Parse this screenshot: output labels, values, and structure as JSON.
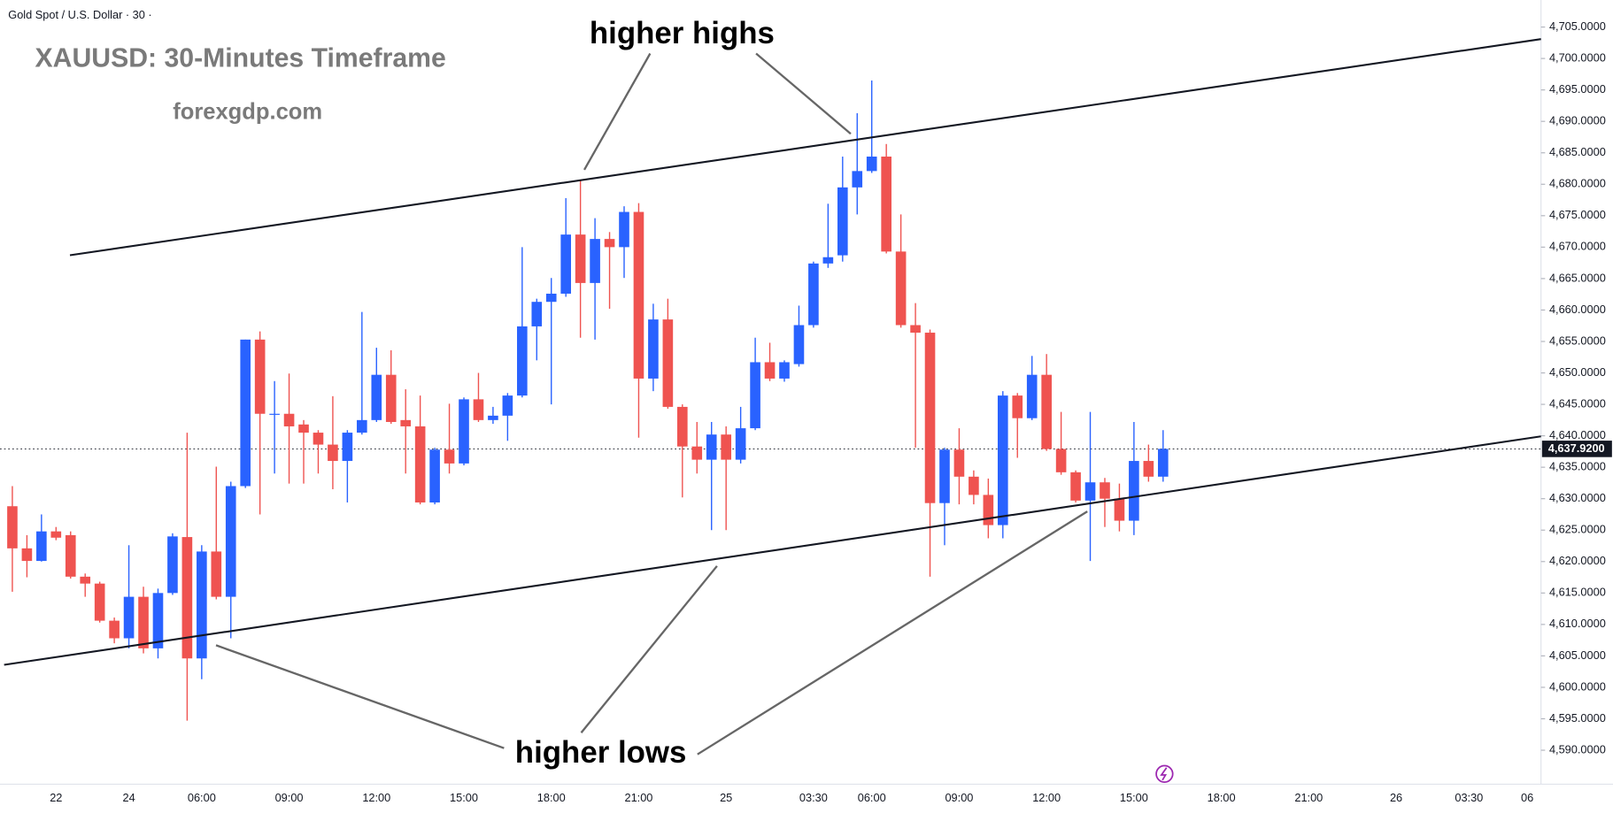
{
  "header": "Gold Spot / U.S. Dollar · 30 ·",
  "chart_data": {
    "type": "candlestick",
    "title": "XAUUSD: 30-Minutes Timeframe",
    "subtitle": "forexgdp.com",
    "annotations": [
      "higher highs",
      "higher lows"
    ],
    "up_color": "#2962ff",
    "down_color": "#ef5350",
    "categories": [
      null,
      null,
      null,
      "22",
      null,
      null,
      null,
      null,
      "24",
      null,
      null,
      null,
      null,
      "06:00",
      null,
      null,
      null,
      null,
      null,
      "09:00",
      null,
      null,
      null,
      null,
      null,
      "12:00",
      null,
      null,
      null,
      null,
      null,
      "15:00",
      null,
      null,
      null,
      null,
      null,
      "18:00",
      null,
      null,
      null,
      null,
      null,
      "21:00",
      null,
      null,
      null,
      null,
      null,
      "25",
      null,
      null,
      null,
      null,
      null,
      "03:30",
      null,
      null,
      null,
      "06:00",
      null,
      null,
      null,
      null,
      null,
      "09:00",
      null,
      null,
      null,
      null,
      null,
      "12:00",
      null,
      null,
      null,
      null,
      null,
      "15:00",
      null,
      null,
      null,
      null,
      null,
      "18:00",
      null,
      null,
      null,
      null,
      null,
      "21:00",
      null,
      null,
      null,
      null,
      null,
      "26",
      null,
      null,
      null,
      null,
      "03:30",
      null,
      null,
      null,
      "06"
    ],
    "open": [
      4628.8,
      4622.1,
      4620.1,
      4624.8,
      4624.2,
      4617.6,
      4616.5,
      4610.6,
      4607.8,
      4614.4,
      4606.2,
      4615,
      4623.9,
      4604.6,
      4621.6,
      4614.4,
      4632,
      4655.3,
      4643.5,
      4643.5,
      4641.8,
      4640.5,
      4638.6,
      4636,
      4640.5,
      4642.5,
      4649.7,
      4642.5,
      4641.5,
      4629.4,
      4637.8,
      4635.6,
      4645.8,
      4642.5,
      4643.2,
      4646.4,
      4657.4,
      4661.3,
      4662.6,
      4672,
      4664.3,
      4671.3,
      4670,
      4675.6,
      4649.1,
      4658.5,
      4644.6,
      4638.3,
      4636.2,
      4640.2,
      4636.2,
      4641.2,
      4651.7,
      4649.1,
      4651.4,
      4657.6,
      4667.4,
      4668.7,
      4679.5,
      4682.1,
      4684.4,
      4669.3,
      4657.6,
      4656.4,
      4629.3,
      4637.8,
      4633.5,
      4630.6,
      4625.8,
      4646.4,
      4642.8,
      4649.7,
      4637.9,
      4634.2,
      4629.7,
      4632.6,
      4630,
      4626.5,
      4636,
      4633.5,
      null,
      null,
      null,
      null,
      null,
      null,
      null,
      null,
      null,
      null,
      null,
      null,
      null,
      null,
      null,
      null,
      null,
      null,
      null,
      null,
      null,
      null,
      null,
      null,
      null
    ],
    "high": [
      4632,
      4624.2,
      4627.5,
      4625.5,
      4624.8,
      4618.1,
      4616.8,
      4611.1,
      4622.6,
      4616,
      4615.7,
      4624.5,
      4640.5,
      4622.6,
      4635.1,
      4632.7,
      4655.3,
      4656.6,
      4648.7,
      4649.9,
      4642.5,
      4640.9,
      4646.3,
      4640.9,
      4659.7,
      4654,
      4653.6,
      4647.4,
      4646.4,
      4638.1,
      4645.1,
      4646.1,
      4650,
      4644.6,
      4646.8,
      4670,
      4661.8,
      4665.1,
      4677.8,
      4680.6,
      4674.6,
      4672.4,
      4676.5,
      4677,
      4661,
      4661.8,
      4645,
      4642.2,
      4642.2,
      4641.5,
      4644.6,
      4655.6,
      4654.8,
      4652,
      4660.7,
      4667.7,
      4676.9,
      4684.4,
      4691.3,
      4696.5,
      4686.4,
      4675.2,
      4661.1,
      4656.9,
      4638.1,
      4641.2,
      4634.5,
      4633.2,
      4647.1,
      4646.8,
      4652.7,
      4653,
      4643.8,
      4634.5,
      4643.8,
      4633.3,
      4632.4,
      4642.2,
      4638.6,
      4640.9,
      null,
      null,
      null,
      null,
      null,
      null,
      null,
      null,
      null,
      null,
      null,
      null,
      null,
      null,
      null,
      null,
      null,
      null,
      null,
      null,
      null,
      null,
      null,
      null,
      null
    ],
    "low": [
      4615.2,
      4617.5,
      4620,
      4623.4,
      4617.3,
      4614.4,
      4610.3,
      4607,
      4606.2,
      4605.4,
      4604.6,
      4614.7,
      4594.7,
      4601.3,
      4614,
      4607.8,
      4631.7,
      4627.5,
      4634,
      4632.4,
      4632.4,
      4634,
      4631.5,
      4629.4,
      4640.2,
      4642.2,
      4641.9,
      4634,
      4629.1,
      4629.1,
      4634,
      4635.3,
      4642.2,
      4641.9,
      4639.2,
      4646.1,
      4652,
      4645,
      4662.1,
      4655.6,
      4655.3,
      4660.2,
      4665.1,
      4639.7,
      4647.1,
      4644.3,
      4630.2,
      4634,
      4625,
      4625,
      4635.6,
      4640.9,
      4648.7,
      4648.6,
      4651,
      4657.2,
      4666.7,
      4667.7,
      4675.2,
      4681.8,
      4669,
      4657.2,
      4638.1,
      4617.6,
      4622.6,
      4629.1,
      4629.1,
      4623.7,
      4623.7,
      4636.5,
      4642.5,
      4637.6,
      4633.8,
      4629.4,
      4620.1,
      4625.5,
      4624.8,
      4624.2,
      4632.7,
      4632.7,
      null,
      null,
      null,
      null,
      null,
      null,
      null,
      null,
      null,
      null,
      null,
      null,
      null,
      null,
      null,
      null,
      null,
      null,
      null,
      null,
      null,
      null,
      null,
      null,
      null
    ],
    "close": [
      4622.1,
      4620.1,
      4624.8,
      4623.8,
      4617.6,
      4616.5,
      4610.6,
      4607.8,
      4614.4,
      4606.2,
      4615,
      4624,
      4604.6,
      4621.6,
      4614.4,
      4632,
      4655.3,
      4643.5,
      4643.5,
      4641.5,
      4640.5,
      4638.6,
      4636,
      4640.5,
      4642.5,
      4649.7,
      4642.2,
      4641.5,
      4629.4,
      4637.8,
      4635.6,
      4645.8,
      4642.5,
      4643.2,
      4646.4,
      4657.4,
      4661.3,
      4662.6,
      4672,
      4664.3,
      4671.3,
      4670,
      4675.6,
      4649.1,
      4658.5,
      4644.6,
      4638.3,
      4636.2,
      4640.2,
      4636.2,
      4641.2,
      4651.7,
      4649.1,
      4651.7,
      4657.6,
      4667.4,
      4668.4,
      4679.5,
      4682.1,
      4684.4,
      4669.3,
      4657.6,
      4656.4,
      4629.3,
      4637.8,
      4633.5,
      4630.6,
      4625.8,
      4646.4,
      4642.8,
      4649.7,
      4637.9,
      4634.2,
      4629.7,
      4632.6,
      4630,
      4626.5,
      4636,
      4633.5,
      4637.92,
      null,
      null,
      null,
      null,
      null,
      null,
      null,
      null,
      null,
      null,
      null,
      null,
      null,
      null,
      null,
      null,
      null,
      null,
      null,
      null,
      null,
      null,
      null,
      null,
      null
    ],
    "last_price": {
      "value": 4637.92,
      "label": "4,637.9200"
    },
    "ylim": [
      4584.6,
      4709.3
    ],
    "yticks": [
      {
        "value": 4590,
        "label": "4,590.0000"
      },
      {
        "value": 4595,
        "label": "4,595.0000"
      },
      {
        "value": 4600,
        "label": "4,600.0000"
      },
      {
        "value": 4605,
        "label": "4,605.0000"
      },
      {
        "value": 4610,
        "label": "4,610.0000"
      },
      {
        "value": 4615,
        "label": "4,615.0000"
      },
      {
        "value": 4620,
        "label": "4,620.0000"
      },
      {
        "value": 4625,
        "label": "4,625.0000"
      },
      {
        "value": 4630,
        "label": "4,630.0000"
      },
      {
        "value": 4635,
        "label": "4,635.0000"
      },
      {
        "value": 4640,
        "label": "4,640.0000"
      },
      {
        "value": 4645,
        "label": "4,645.0000"
      },
      {
        "value": 4650,
        "label": "4,650.0000"
      },
      {
        "value": 4655,
        "label": "4,655.0000"
      },
      {
        "value": 4660,
        "label": "4,660.0000"
      },
      {
        "value": 4665,
        "label": "4,665.0000"
      },
      {
        "value": 4670,
        "label": "4,670.0000"
      },
      {
        "value": 4675,
        "label": "4,675.0000"
      },
      {
        "value": 4680,
        "label": "4,680.0000"
      },
      {
        "value": 4685,
        "label": "4,685.0000"
      },
      {
        "value": 4690,
        "label": "4,690.0000"
      },
      {
        "value": 4695,
        "label": "4,695.0000"
      },
      {
        "value": 4700,
        "label": "4,700.0000"
      },
      {
        "value": 4705,
        "label": "4,705.0000"
      }
    ],
    "grid": false
  }
}
